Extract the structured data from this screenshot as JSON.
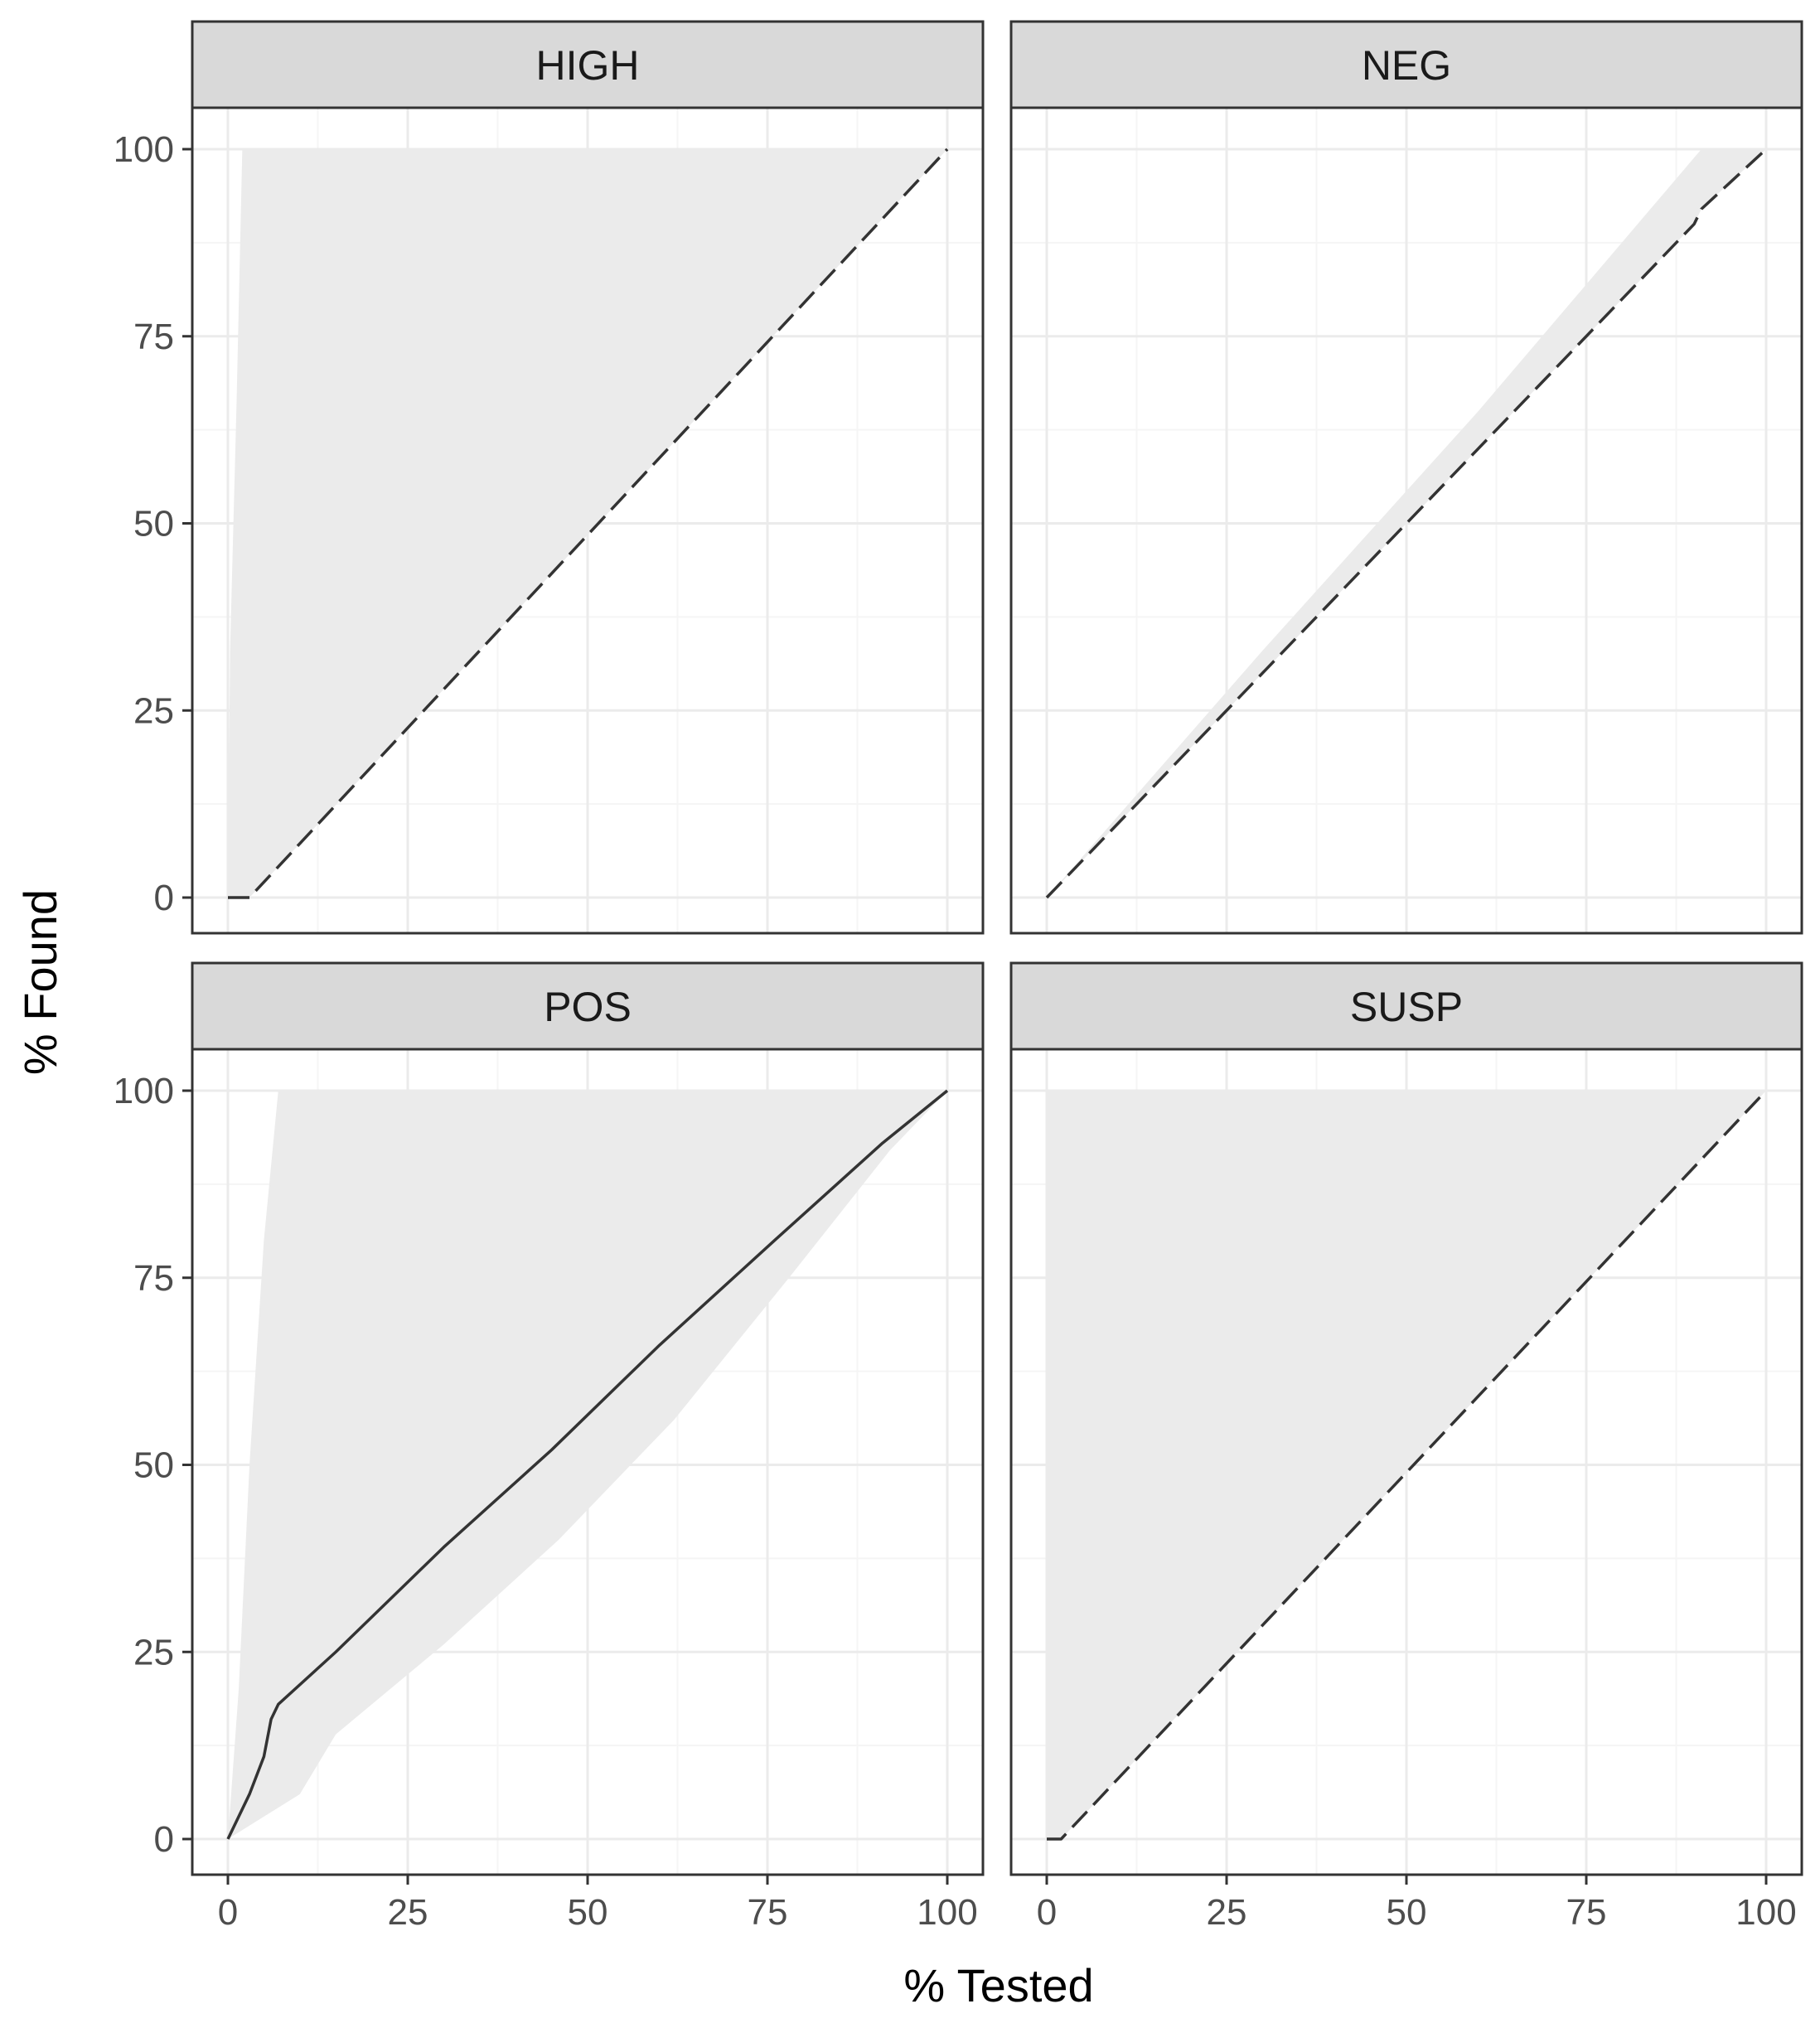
{
  "chart_data": {
    "type": "line",
    "xlabel": "% Tested",
    "ylabel": "% Found",
    "xlim": [
      0,
      100
    ],
    "ylim": [
      0,
      100
    ],
    "x_ticks": [
      0,
      25,
      50,
      75,
      100
    ],
    "y_ticks": [
      0,
      25,
      50,
      75,
      100
    ],
    "grid": true,
    "colors": {
      "ribbon": "#ebebeb",
      "line": "#333333",
      "grid_major": "#ebebeb",
      "grid_minor": "#f5f5f5",
      "strip_fill": "#d9d9d9",
      "panel_border": "#333333"
    },
    "facets": [
      {
        "label": "HIGH",
        "line_style": "dashed",
        "line": [
          [
            0,
            0
          ],
          [
            3,
            0
          ],
          [
            100,
            100
          ]
        ],
        "ribbon_upper": [
          [
            0,
            0
          ],
          [
            0.3,
            33
          ],
          [
            1.2,
            66
          ],
          [
            2,
            100
          ],
          [
            100,
            100
          ]
        ],
        "ribbon_lower": [
          [
            0,
            0
          ],
          [
            3,
            0
          ],
          [
            100,
            100
          ]
        ]
      },
      {
        "label": "NEG",
        "line_style": "dashed",
        "line": [
          [
            0,
            0
          ],
          [
            90,
            90
          ],
          [
            91,
            92
          ],
          [
            100,
            100
          ]
        ],
        "ribbon_upper": [
          [
            0,
            0
          ],
          [
            30,
            33
          ],
          [
            60,
            65
          ],
          [
            91,
            100
          ],
          [
            100,
            100
          ]
        ],
        "ribbon_lower": [
          [
            0,
            0
          ],
          [
            90,
            90
          ],
          [
            91,
            92
          ],
          [
            100,
            100
          ]
        ]
      },
      {
        "label": "POS",
        "line_style": "solid",
        "line": [
          [
            0,
            0
          ],
          [
            3,
            6
          ],
          [
            5,
            11
          ],
          [
            6,
            16
          ],
          [
            7,
            18
          ],
          [
            15,
            25
          ],
          [
            30,
            39
          ],
          [
            45,
            52
          ],
          [
            60,
            66
          ],
          [
            76,
            80
          ],
          [
            91,
            93
          ],
          [
            100,
            100
          ]
        ],
        "ribbon_upper": [
          [
            0,
            0
          ],
          [
            1.5,
            20
          ],
          [
            3,
            50
          ],
          [
            5,
            80
          ],
          [
            7,
            100
          ],
          [
            100,
            100
          ]
        ],
        "ribbon_lower": [
          [
            0,
            0
          ],
          [
            10,
            6
          ],
          [
            15,
            14
          ],
          [
            30,
            26
          ],
          [
            46,
            40
          ],
          [
            62,
            56
          ],
          [
            78,
            75
          ],
          [
            92,
            92
          ],
          [
            100,
            100
          ]
        ]
      },
      {
        "label": "SUSP",
        "line_style": "dashed",
        "line": [
          [
            0,
            0
          ],
          [
            2,
            0
          ],
          [
            100,
            100
          ]
        ],
        "ribbon_upper": [
          [
            0,
            0
          ],
          [
            0,
            100
          ],
          [
            100,
            100
          ]
        ],
        "ribbon_lower": [
          [
            0,
            0
          ],
          [
            2,
            0
          ],
          [
            100,
            100
          ]
        ]
      }
    ]
  }
}
